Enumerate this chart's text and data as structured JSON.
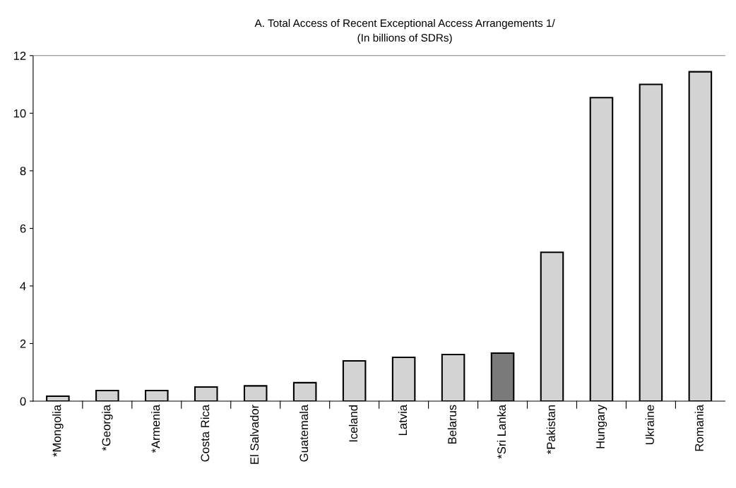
{
  "chart_data": {
    "type": "bar",
    "title": "A. Total Access of Recent Exceptional Access Arrangements 1/",
    "subtitle": "(In billions of SDRs)",
    "categories": [
      "*Mongolia",
      "*Georgia",
      "*Armenia",
      "Costa Rica",
      "El Salvador",
      "Guatemala",
      "Iceland",
      "Latvia",
      "Belarus",
      "*Sri Lanka",
      "*Pakistan",
      "Hungary",
      "Ukraine",
      "Romania"
    ],
    "values": [
      0.17,
      0.37,
      0.37,
      0.49,
      0.53,
      0.64,
      1.4,
      1.52,
      1.62,
      1.67,
      5.17,
      10.54,
      11.0,
      11.44
    ],
    "colors": [
      "#d3d3d3",
      "#d3d3d3",
      "#d3d3d3",
      "#d3d3d3",
      "#d3d3d3",
      "#d3d3d3",
      "#d3d3d3",
      "#d3d3d3",
      "#d3d3d3",
      "#7a7a7a",
      "#d3d3d3",
      "#d3d3d3",
      "#d3d3d3",
      "#d3d3d3"
    ],
    "ylim": [
      0,
      12
    ],
    "yticks": [
      0,
      2,
      4,
      6,
      8,
      10,
      12
    ],
    "grid": false
  }
}
